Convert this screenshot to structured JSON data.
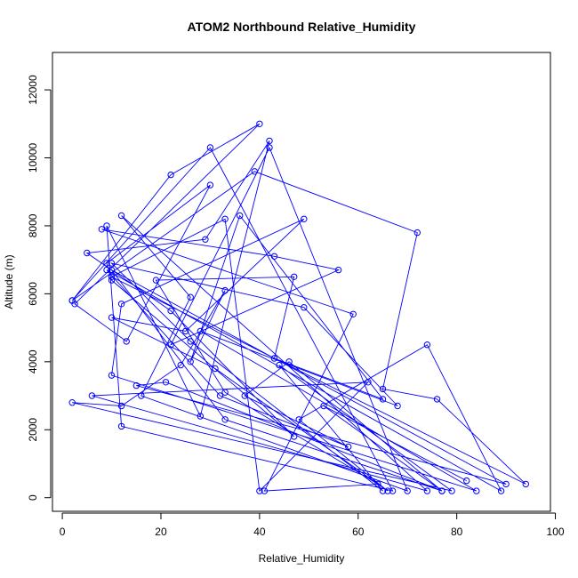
{
  "chart_data": {
    "type": "line",
    "title": "ATOM2 Northbound Relative_Humidity",
    "xlabel": "Relative_Humidity",
    "ylabel": "Altitude (m)",
    "xlim": [
      -2,
      99
    ],
    "ylim": [
      -400,
      13100
    ],
    "x_ticks": [
      0,
      20,
      40,
      60,
      80,
      100
    ],
    "y_ticks": [
      0,
      2000,
      4000,
      6000,
      8000,
      10000,
      12000
    ],
    "x_tick_labels": [
      "0",
      "20",
      "40",
      "60",
      "80",
      "100"
    ],
    "y_tick_labels": [
      "0",
      "2000",
      "4000",
      "6000",
      "8000",
      "10000",
      "12000"
    ],
    "grid": false,
    "marker": "open-circle",
    "color": "#0000ff",
    "series": [
      {
        "points": [
          [
            2,
            5800
          ],
          [
            22,
            9500
          ],
          [
            40,
            11000
          ],
          [
            2.5,
            5700
          ],
          [
            13,
            4600
          ],
          [
            30,
            9200
          ],
          [
            9,
            6900
          ],
          [
            10,
            6400
          ],
          [
            47,
            1800
          ],
          [
            22,
            5500
          ],
          [
            5,
            7200
          ],
          [
            29,
            7600
          ],
          [
            42,
            10500
          ],
          [
            28,
            2400
          ],
          [
            9,
            8000
          ],
          [
            12,
            2100
          ],
          [
            67,
            200
          ],
          [
            30,
            10300
          ],
          [
            2,
            5800
          ],
          [
            39,
            9600
          ],
          [
            72,
            7800
          ],
          [
            65,
            3200
          ],
          [
            76,
            2900
          ],
          [
            94,
            400
          ],
          [
            10,
            6500
          ],
          [
            33,
            8200
          ],
          [
            40,
            200
          ],
          [
            62,
            3400
          ],
          [
            6,
            3000
          ],
          [
            74,
            200
          ],
          [
            12,
            8300
          ],
          [
            26,
            5900
          ],
          [
            16,
            3000
          ],
          [
            70,
            200
          ],
          [
            42,
            10300
          ],
          [
            22,
            4500
          ],
          [
            56,
            6700
          ],
          [
            43,
            7100
          ],
          [
            8,
            7900
          ],
          [
            59,
            5400
          ],
          [
            41,
            200
          ],
          [
            64,
            400
          ],
          [
            33,
            3100
          ],
          [
            19,
            6400
          ],
          [
            47,
            6500
          ],
          [
            43,
            4100
          ],
          [
            65,
            2900
          ],
          [
            36,
            8300
          ],
          [
            26,
            4000
          ],
          [
            33,
            6100
          ],
          [
            24,
            3900
          ],
          [
            12,
            2700
          ],
          [
            2,
            2800
          ],
          [
            79,
            200
          ],
          [
            44,
            3900
          ],
          [
            65,
            200
          ],
          [
            26,
            4600
          ],
          [
            10,
            6900
          ],
          [
            49,
            5600
          ],
          [
            68,
            2700
          ],
          [
            28,
            4900
          ],
          [
            84,
            200
          ],
          [
            10,
            3600
          ],
          [
            12,
            5700
          ],
          [
            49,
            8200
          ],
          [
            25,
            4900
          ],
          [
            10,
            5300
          ],
          [
            31,
            3800
          ],
          [
            66,
            200
          ],
          [
            48,
            2300
          ],
          [
            74,
            4500
          ],
          [
            89,
            200
          ],
          [
            9,
            6700
          ],
          [
            32,
            3000
          ],
          [
            58,
            1500
          ],
          [
            37,
            3000
          ],
          [
            46,
            4000
          ],
          [
            77,
            200
          ],
          [
            21,
            3400
          ],
          [
            15,
            3300
          ],
          [
            90,
            400
          ],
          [
            10,
            6700
          ],
          [
            33,
            2300
          ],
          [
            77,
            200
          ],
          [
            53,
            2700
          ],
          [
            82,
            500
          ]
        ]
      }
    ]
  }
}
